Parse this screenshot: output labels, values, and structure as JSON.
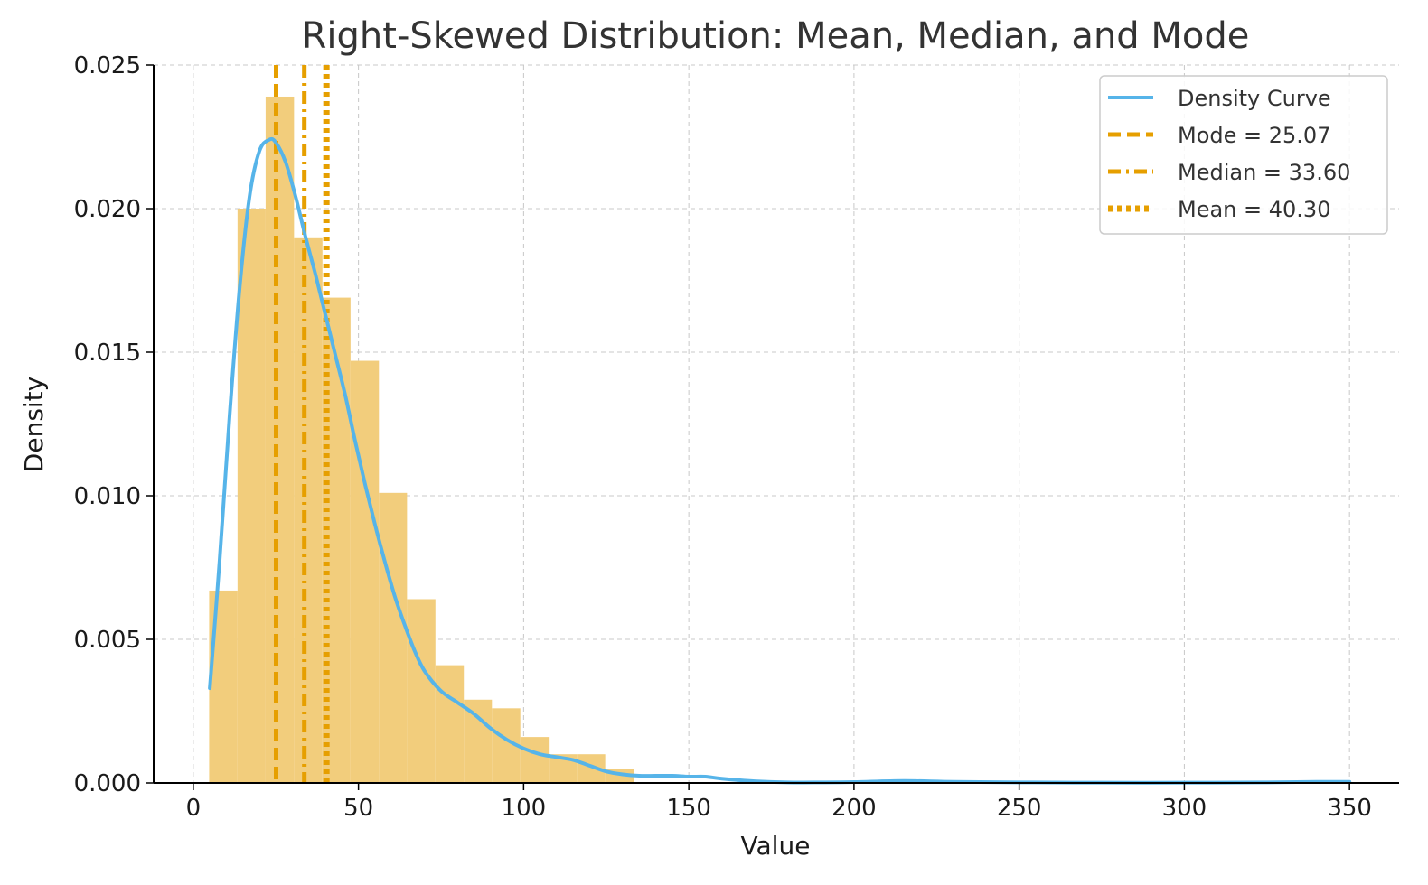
{
  "chart_data": {
    "type": "bar",
    "title": "Right-Skewed Distribution: Mean, Median, and Mode",
    "xlabel": "Value",
    "ylabel": "Density",
    "xlim": [
      -12,
      365
    ],
    "ylim": [
      0,
      0.025
    ],
    "xticks": [
      0,
      50,
      100,
      150,
      200,
      250,
      300,
      350
    ],
    "xtick_labels": [
      "0",
      "50",
      "100",
      "150",
      "200",
      "250",
      "300",
      "350"
    ],
    "yticks": [
      0,
      0.005,
      0.01,
      0.015,
      0.02,
      0.025
    ],
    "ytick_labels": [
      "0.000",
      "0.005",
      "0.010",
      "0.015",
      "0.020",
      "0.025"
    ],
    "grid": true,
    "legend_position": "top-right",
    "colors": {
      "bars": "#f2cd7c",
      "density": "#56b4e9",
      "lines": "#e69f00",
      "grid": "#c8c8c8",
      "axis": "#000000"
    },
    "histogram": {
      "bin_edges": [
        4.8,
        13.4,
        21.9,
        30.5,
        39.1,
        47.6,
        56.2,
        64.7,
        73.3,
        81.9,
        90.4,
        99.0,
        107.6,
        116.1,
        124.7,
        133.3
      ],
      "values": [
        0.0067,
        0.02,
        0.0239,
        0.019,
        0.0169,
        0.0147,
        0.0101,
        0.0064,
        0.0041,
        0.0029,
        0.0026,
        0.0016,
        0.001,
        0.001,
        0.0005
      ]
    },
    "density_curve": {
      "name": "Density Curve",
      "x": [
        5,
        8,
        11,
        14,
        17,
        20,
        23,
        25,
        28,
        31,
        34,
        37,
        40,
        43,
        46,
        49,
        52,
        55,
        58,
        61,
        64,
        67,
        70,
        75,
        80,
        85,
        90,
        95,
        100,
        105,
        110,
        115,
        120,
        125,
        130,
        135,
        140,
        145,
        150,
        155,
        160,
        170,
        180,
        190,
        200,
        215,
        230,
        250,
        275,
        300,
        325,
        340,
        350
      ],
      "y": [
        0.0033,
        0.0078,
        0.0128,
        0.0172,
        0.0204,
        0.022,
        0.0224,
        0.0223,
        0.0216,
        0.0204,
        0.019,
        0.0177,
        0.0163,
        0.0149,
        0.0135,
        0.0119,
        0.0104,
        0.009,
        0.0077,
        0.0065,
        0.0055,
        0.0046,
        0.0039,
        0.0032,
        0.0028,
        0.0024,
        0.0019,
        0.0015,
        0.0012,
        0.001,
        0.0009,
        0.0008,
        0.0006,
        0.0004,
        0.0003,
        0.00025,
        0.00025,
        0.00025,
        0.00022,
        0.00022,
        0.00015,
        6e-05,
        2e-05,
        2e-05,
        3e-05,
        7e-05,
        4e-05,
        2e-05,
        1e-05,
        1e-05,
        2e-05,
        4e-05,
        4e-05
      ]
    },
    "reference_lines": [
      {
        "name": "Mode = 25.07",
        "value": 25.07,
        "style": "dashed"
      },
      {
        "name": "Median = 33.60",
        "value": 33.6,
        "style": "dashdot"
      },
      {
        "name": "Mean = 40.30",
        "value": 40.3,
        "style": "dotted"
      }
    ],
    "legend": [
      {
        "label": "Density Curve",
        "kind": "density"
      },
      {
        "label": "Mode = 25.07",
        "kind": "dashed"
      },
      {
        "label": "Median = 33.60",
        "kind": "dashdot"
      },
      {
        "label": "Mean = 40.30",
        "kind": "dotted"
      }
    ]
  }
}
